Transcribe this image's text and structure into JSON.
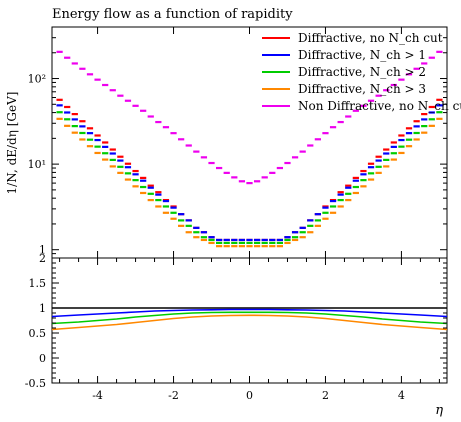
{
  "chart_data": [
    {
      "type": "line",
      "title": "Energy flow as a function of rapidity",
      "xlabel": "",
      "ylabel": "1/N, dE/dη [GeV]",
      "yscale": "log",
      "xlim": [
        -5.2,
        5.2
      ],
      "ylim": [
        0.8,
        400
      ],
      "y_ticks": [
        "1",
        "10¹",
        "10²"
      ],
      "legend_position": "top-right",
      "legend": [
        "Diffractive, no N_ch cut",
        "Diffractive, N_ch > 1",
        "Diffractive, N_ch > 2",
        "Diffractive, N_ch > 3",
        "Non Diffractive, no N_ch cut"
      ],
      "x": [
        -5.0,
        -4.8,
        -4.6,
        -4.4,
        -4.2,
        -4.0,
        -3.8,
        -3.6,
        -3.4,
        -3.2,
        -3.0,
        -2.8,
        -2.6,
        -2.4,
        -2.2,
        -2.0,
        -1.8,
        -1.6,
        -1.4,
        -1.2,
        -1.0,
        -0.8,
        -0.6,
        -0.4,
        -0.2,
        0.0,
        0.2,
        0.4,
        0.6,
        0.8,
        1.0,
        1.2,
        1.4,
        1.6,
        1.8,
        2.0,
        2.2,
        2.4,
        2.6,
        2.8,
        3.0,
        3.2,
        3.4,
        3.6,
        3.8,
        4.0,
        4.2,
        4.4,
        4.6,
        4.8,
        5.0
      ],
      "series": [
        {
          "name": "Diffractive, no N_ch cut",
          "color": "#ff0000",
          "values": [
            56.4,
            46.5,
            38.4,
            31.7,
            26.2,
            21.6,
            17.9,
            14.8,
            12.2,
            10.1,
            8.3,
            6.9,
            5.6,
            4.7,
            3.8,
            3.2,
            2.6,
            2.2,
            1.8,
            1.6,
            1.4,
            1.3,
            1.3,
            1.3,
            1.3,
            1.3,
            1.3,
            1.3,
            1.3,
            1.3,
            1.4,
            1.6,
            1.8,
            2.2,
            2.6,
            3.2,
            3.8,
            4.7,
            5.6,
            6.9,
            8.3,
            10.1,
            12.2,
            14.8,
            17.9,
            21.6,
            26.2,
            31.7,
            38.4,
            46.5,
            56.4
          ]
        },
        {
          "name": "Diffractive, N_ch > 1",
          "color": "#0000ff",
          "values": [
            48.6,
            40.1,
            33.3,
            27.6,
            23.0,
            19.1,
            15.9,
            13.3,
            11.0,
            9.2,
            7.6,
            6.4,
            5.3,
            4.4,
            3.7,
            3.1,
            2.6,
            2.2,
            1.8,
            1.6,
            1.4,
            1.3,
            1.3,
            1.3,
            1.3,
            1.3,
            1.3,
            1.3,
            1.3,
            1.3,
            1.4,
            1.6,
            1.8,
            2.2,
            2.6,
            3.1,
            3.7,
            4.4,
            5.3,
            6.4,
            7.6,
            9.2,
            11.0,
            13.3,
            15.9,
            19.1,
            23.0,
            27.6,
            33.3,
            40.1,
            48.6
          ]
        },
        {
          "name": "Diffractive, N_ch > 2",
          "color": "#00cc00",
          "values": [
            40.4,
            33.4,
            27.8,
            23.1,
            19.3,
            16.0,
            13.4,
            11.2,
            9.3,
            7.8,
            6.5,
            5.4,
            4.5,
            3.8,
            3.2,
            2.7,
            2.2,
            1.9,
            1.6,
            1.4,
            1.3,
            1.2,
            1.2,
            1.2,
            1.2,
            1.2,
            1.2,
            1.2,
            1.2,
            1.2,
            1.3,
            1.4,
            1.6,
            1.9,
            2.2,
            2.7,
            3.2,
            3.8,
            4.5,
            5.4,
            6.5,
            7.8,
            9.3,
            11.2,
            13.4,
            16.0,
            19.3,
            23.1,
            27.8,
            33.4,
            40.4
          ]
        },
        {
          "name": "Diffractive, N_ch > 3",
          "color": "#ff8800",
          "values": [
            33.8,
            28.0,
            23.3,
            19.4,
            16.2,
            13.5,
            11.3,
            9.4,
            7.9,
            6.6,
            5.5,
            4.6,
            3.8,
            3.2,
            2.7,
            2.3,
            1.9,
            1.6,
            1.4,
            1.3,
            1.2,
            1.1,
            1.1,
            1.1,
            1.1,
            1.1,
            1.1,
            1.1,
            1.1,
            1.1,
            1.2,
            1.3,
            1.4,
            1.6,
            1.9,
            2.3,
            2.7,
            3.2,
            3.8,
            4.6,
            5.5,
            6.6,
            7.9,
            9.4,
            11.3,
            13.5,
            16.2,
            19.4,
            23.3,
            28.0,
            33.8
          ]
        },
        {
          "name": "Non Diffractive, no N_ch cut",
          "color": "#ee00ee",
          "values": [
            205,
            175,
            150,
            130,
            112,
            97,
            84,
            73,
            63,
            55,
            48,
            42,
            36,
            31,
            27,
            23,
            19.5,
            16.5,
            14,
            12,
            10.3,
            9.0,
            7.9,
            7.0,
            6.3,
            6.0,
            6.3,
            7.0,
            7.9,
            9.0,
            10.3,
            12,
            14,
            16.5,
            19.5,
            23,
            27,
            31,
            36,
            42,
            48,
            55,
            63,
            73,
            84,
            97,
            112,
            130,
            150,
            175,
            205
          ]
        }
      ]
    },
    {
      "type": "line",
      "xlabel": "η",
      "ylabel": "",
      "xlim": [
        -5.2,
        5.2
      ],
      "ylim": [
        -0.5,
        2
      ],
      "x_ticks": [
        "-4",
        "-2",
        "0",
        "2",
        "4"
      ],
      "y_ticks": [
        "-0.5",
        "0",
        "0.5",
        "1",
        "1.5",
        "2"
      ],
      "x": [
        -5.2,
        -4.5,
        -4.0,
        -3.5,
        -3.0,
        -2.5,
        -2.0,
        -1.5,
        -1.0,
        -0.5,
        0.0,
        0.5,
        1.0,
        1.5,
        2.0,
        2.5,
        3.0,
        3.5,
        4.0,
        4.5,
        5.2
      ],
      "series": [
        {
          "name": "Diffractive, no N_ch cut",
          "color": "#000000",
          "values": [
            1,
            1,
            1,
            1,
            1,
            1,
            1,
            1,
            1,
            1,
            1,
            1,
            1,
            1,
            1,
            1,
            1,
            1,
            1,
            1,
            1
          ]
        },
        {
          "name": "Diffractive, N_ch > 1",
          "color": "#0000ff",
          "values": [
            0.83,
            0.86,
            0.88,
            0.9,
            0.92,
            0.94,
            0.95,
            0.96,
            0.965,
            0.97,
            0.97,
            0.97,
            0.965,
            0.96,
            0.95,
            0.94,
            0.92,
            0.9,
            0.88,
            0.86,
            0.83
          ]
        },
        {
          "name": "Diffractive, N_ch > 2",
          "color": "#00cc00",
          "values": [
            0.69,
            0.72,
            0.75,
            0.78,
            0.82,
            0.85,
            0.88,
            0.9,
            0.91,
            0.915,
            0.915,
            0.915,
            0.91,
            0.9,
            0.88,
            0.85,
            0.82,
            0.78,
            0.75,
            0.72,
            0.69
          ]
        },
        {
          "name": "Diffractive, N_ch > 3",
          "color": "#ff8800",
          "values": [
            0.57,
            0.61,
            0.64,
            0.67,
            0.71,
            0.75,
            0.79,
            0.82,
            0.84,
            0.85,
            0.855,
            0.85,
            0.84,
            0.82,
            0.79,
            0.75,
            0.71,
            0.67,
            0.64,
            0.61,
            0.57
          ]
        }
      ]
    }
  ]
}
